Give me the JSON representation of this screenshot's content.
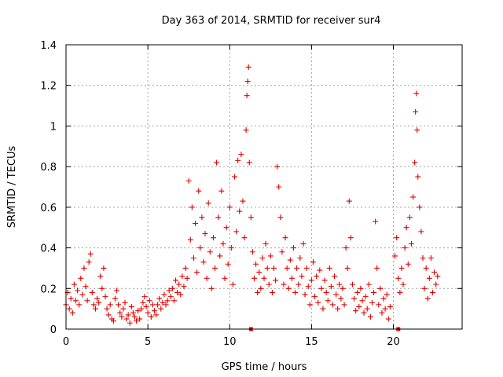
{
  "chart_data": {
    "type": "scatter",
    "title": "Day 363 of 2014, SRMTID for receiver sur4",
    "xlabel": "GPS time / hours",
    "ylabel": "SRMTID / TECUs",
    "xlim": [
      0,
      24.2
    ],
    "ylim": [
      0,
      1.4
    ],
    "xticks": [
      0,
      5,
      10,
      15,
      20
    ],
    "xtick_labels": [
      "0",
      "5",
      "10",
      "15",
      "20"
    ],
    "yticks": [
      0,
      0.2,
      0.4,
      0.6,
      0.8,
      1.0,
      1.2,
      1.4
    ],
    "ytick_labels": [
      "0",
      "0.2",
      "0.4",
      "0.6",
      "0.8",
      "1",
      "1.2",
      "1.4"
    ],
    "grid": true,
    "marker": "+",
    "color": "#e00000",
    "series": [
      {
        "name": "SRMTID",
        "points": [
          [
            0.0,
            0.12
          ],
          [
            0.1,
            0.18
          ],
          [
            0.2,
            0.1
          ],
          [
            0.3,
            0.15
          ],
          [
            0.4,
            0.08
          ],
          [
            0.5,
            0.22
          ],
          [
            0.6,
            0.14
          ],
          [
            0.7,
            0.19
          ],
          [
            0.8,
            0.12
          ],
          [
            0.9,
            0.25
          ],
          [
            1.0,
            0.17
          ],
          [
            1.1,
            0.3
          ],
          [
            1.2,
            0.21
          ],
          [
            1.3,
            0.14
          ],
          [
            1.4,
            0.33
          ],
          [
            1.5,
            0.37
          ],
          [
            1.6,
            0.18
          ],
          [
            1.7,
            0.12
          ],
          [
            1.8,
            0.1
          ],
          [
            1.9,
            0.15
          ],
          [
            2.0,
            0.13
          ],
          [
            2.1,
            0.26
          ],
          [
            2.2,
            0.2
          ],
          [
            2.3,
            0.3
          ],
          [
            2.4,
            0.16
          ],
          [
            2.5,
            0.1
          ],
          [
            2.6,
            0.07
          ],
          [
            2.7,
            0.12
          ],
          [
            2.8,
            0.05
          ],
          [
            2.9,
            0.04
          ],
          [
            3.0,
            0.15
          ],
          [
            3.1,
            0.19
          ],
          [
            3.2,
            0.12
          ],
          [
            3.3,
            0.08
          ],
          [
            3.4,
            0.06
          ],
          [
            3.5,
            0.1
          ],
          [
            3.6,
            0.13
          ],
          [
            3.7,
            0.05
          ],
          [
            3.8,
            0.07
          ],
          [
            3.9,
            0.03
          ],
          [
            4.0,
            0.11
          ],
          [
            4.1,
            0.08
          ],
          [
            4.2,
            0.06
          ],
          [
            4.3,
            0.04
          ],
          [
            4.4,
            0.09
          ],
          [
            4.5,
            0.05
          ],
          [
            4.6,
            0.1
          ],
          [
            4.7,
            0.13
          ],
          [
            4.8,
            0.16
          ],
          [
            4.9,
            0.11
          ],
          [
            5.0,
            0.08
          ],
          [
            5.1,
            0.14
          ],
          [
            5.2,
            0.06
          ],
          [
            5.3,
            0.12
          ],
          [
            5.4,
            0.09
          ],
          [
            5.5,
            0.07
          ],
          [
            5.6,
            0.12
          ],
          [
            5.7,
            0.15
          ],
          [
            5.8,
            0.1
          ],
          [
            5.9,
            0.13
          ],
          [
            6.0,
            0.17
          ],
          [
            6.1,
            0.12
          ],
          [
            6.2,
            0.14
          ],
          [
            6.3,
            0.19
          ],
          [
            6.4,
            0.16
          ],
          [
            6.5,
            0.2
          ],
          [
            6.6,
            0.14
          ],
          [
            6.7,
            0.24
          ],
          [
            6.8,
            0.18
          ],
          [
            6.9,
            0.22
          ],
          [
            7.0,
            0.17
          ],
          [
            7.1,
            0.26
          ],
          [
            7.2,
            0.21
          ],
          [
            7.3,
            0.3
          ],
          [
            7.4,
            0.25
          ],
          [
            7.5,
            0.73
          ],
          [
            7.6,
            0.44
          ],
          [
            7.7,
            0.6
          ],
          [
            7.8,
            0.35
          ],
          [
            7.9,
            0.52
          ],
          [
            8.0,
            0.28
          ],
          [
            8.1,
            0.68
          ],
          [
            8.2,
            0.4
          ],
          [
            8.3,
            0.55
          ],
          [
            8.4,
            0.33
          ],
          [
            8.5,
            0.47
          ],
          [
            8.6,
            0.25
          ],
          [
            8.7,
            0.62
          ],
          [
            8.8,
            0.38
          ],
          [
            8.9,
            0.2
          ],
          [
            9.0,
            0.45
          ],
          [
            9.1,
            0.3
          ],
          [
            9.2,
            0.82
          ],
          [
            9.3,
            0.55
          ],
          [
            9.4,
            0.36
          ],
          [
            9.5,
            0.68
          ],
          [
            9.6,
            0.42
          ],
          [
            9.7,
            0.25
          ],
          [
            9.8,
            0.5
          ],
          [
            9.9,
            0.32
          ],
          [
            10.0,
            0.6
          ],
          [
            10.1,
            0.4
          ],
          [
            10.2,
            0.22
          ],
          [
            10.3,
            0.75
          ],
          [
            10.4,
            0.48
          ],
          [
            10.5,
            0.83
          ],
          [
            10.6,
            0.58
          ],
          [
            10.7,
            0.86
          ],
          [
            10.8,
            0.63
          ],
          [
            10.9,
            0.45
          ],
          [
            11.0,
            0.98
          ],
          [
            11.05,
            1.15
          ],
          [
            11.1,
            1.22
          ],
          [
            11.15,
            1.29
          ],
          [
            11.2,
            0.82
          ],
          [
            11.3,
            0.55
          ],
          [
            11.4,
            0.38
          ],
          [
            11.5,
            0.25
          ],
          [
            11.6,
            0.32
          ],
          [
            11.7,
            0.18
          ],
          [
            11.8,
            0.28
          ],
          [
            11.9,
            0.2
          ],
          [
            12.0,
            0.35
          ],
          [
            12.1,
            0.25
          ],
          [
            12.2,
            0.42
          ],
          [
            12.3,
            0.3
          ],
          [
            12.4,
            0.22
          ],
          [
            12.5,
            0.36
          ],
          [
            12.6,
            0.18
          ],
          [
            12.7,
            0.3
          ],
          [
            12.8,
            0.24
          ],
          [
            12.9,
            0.8
          ],
          [
            13.0,
            0.7
          ],
          [
            13.1,
            0.55
          ],
          [
            13.2,
            0.38
          ],
          [
            13.3,
            0.22
          ],
          [
            13.4,
            0.45
          ],
          [
            13.5,
            0.3
          ],
          [
            13.6,
            0.2
          ],
          [
            13.7,
            0.34
          ],
          [
            13.8,
            0.25
          ],
          [
            13.9,
            0.4
          ],
          [
            14.0,
            0.18
          ],
          [
            14.1,
            0.3
          ],
          [
            14.2,
            0.22
          ],
          [
            14.3,
            0.35
          ],
          [
            14.4,
            0.26
          ],
          [
            14.5,
            0.42
          ],
          [
            14.6,
            0.17
          ],
          [
            14.7,
            0.3
          ],
          [
            14.8,
            0.21
          ],
          [
            14.9,
            0.12
          ],
          [
            15.0,
            0.24
          ],
          [
            15.1,
            0.33
          ],
          [
            15.2,
            0.16
          ],
          [
            15.3,
            0.26
          ],
          [
            15.4,
            0.13
          ],
          [
            15.5,
            0.29
          ],
          [
            15.6,
            0.2
          ],
          [
            15.7,
            0.1
          ],
          [
            15.8,
            0.24
          ],
          [
            15.9,
            0.18
          ],
          [
            16.0,
            0.14
          ],
          [
            16.1,
            0.3
          ],
          [
            16.2,
            0.21
          ],
          [
            16.3,
            0.12
          ],
          [
            16.4,
            0.26
          ],
          [
            16.5,
            0.17
          ],
          [
            16.6,
            0.1
          ],
          [
            16.7,
            0.22
          ],
          [
            16.8,
            0.15
          ],
          [
            16.9,
            0.2
          ],
          [
            17.0,
            0.12
          ],
          [
            17.1,
            0.4
          ],
          [
            17.2,
            0.3
          ],
          [
            17.3,
            0.63
          ],
          [
            17.4,
            0.45
          ],
          [
            17.5,
            0.22
          ],
          [
            17.6,
            0.15
          ],
          [
            17.7,
            0.09
          ],
          [
            17.8,
            0.18
          ],
          [
            17.9,
            0.11
          ],
          [
            18.0,
            0.2
          ],
          [
            18.1,
            0.14
          ],
          [
            18.2,
            0.08
          ],
          [
            18.3,
            0.16
          ],
          [
            18.4,
            0.1
          ],
          [
            18.5,
            0.22
          ],
          [
            18.6,
            0.06
          ],
          [
            18.7,
            0.13
          ],
          [
            18.8,
            0.18
          ],
          [
            18.9,
            0.53
          ],
          [
            19.0,
            0.3
          ],
          [
            19.1,
            0.12
          ],
          [
            19.2,
            0.2
          ],
          [
            19.3,
            0.08
          ],
          [
            19.4,
            0.15
          ],
          [
            19.5,
            0.1
          ],
          [
            19.6,
            0.17
          ],
          [
            19.7,
            0.05
          ],
          [
            19.8,
            0.11
          ],
          [
            20.1,
            0.36
          ],
          [
            20.2,
            0.45
          ],
          [
            20.3,
            0.25
          ],
          [
            20.4,
            0.18
          ],
          [
            20.5,
            0.3
          ],
          [
            20.6,
            0.22
          ],
          [
            20.7,
            0.4
          ],
          [
            20.8,
            0.5
          ],
          [
            20.9,
            0.32
          ],
          [
            21.0,
            0.55
          ],
          [
            21.1,
            0.42
          ],
          [
            21.2,
            0.65
          ],
          [
            21.3,
            0.82
          ],
          [
            21.35,
            1.07
          ],
          [
            21.4,
            1.16
          ],
          [
            21.45,
            0.98
          ],
          [
            21.5,
            0.75
          ],
          [
            21.6,
            0.6
          ],
          [
            21.7,
            0.48
          ],
          [
            21.8,
            0.35
          ],
          [
            21.9,
            0.2
          ],
          [
            22.0,
            0.3
          ],
          [
            22.1,
            0.15
          ],
          [
            22.2,
            0.25
          ],
          [
            22.3,
            0.35
          ],
          [
            22.4,
            0.18
          ],
          [
            22.5,
            0.28
          ],
          [
            22.6,
            0.22
          ],
          [
            22.7,
            0.26
          ]
        ]
      }
    ],
    "gap_markers": [
      11.3,
      20.3
    ]
  }
}
